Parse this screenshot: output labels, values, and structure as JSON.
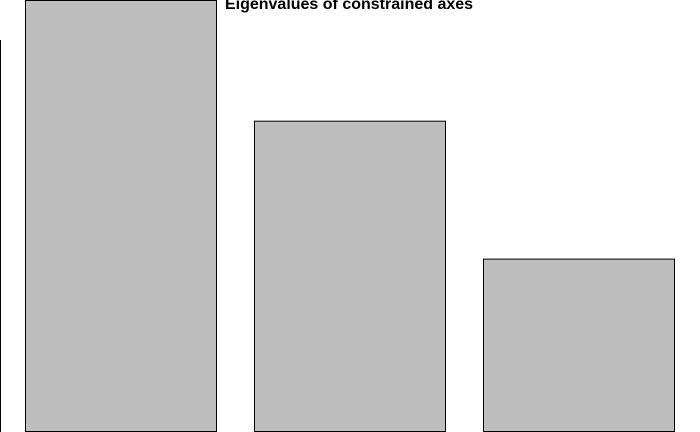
{
  "chart_data": {
    "type": "bar",
    "title": "Eigenvalues of constrained axes",
    "categories": [
      "",
      "",
      ""
    ],
    "values": [
      1.0,
      0.72,
      0.4
    ],
    "ylim": [
      0,
      1.2
    ],
    "grid": false,
    "colors": {
      "bar_fill": "#bebebe",
      "bar_stroke": "#000000",
      "axis": "#000000"
    }
  }
}
